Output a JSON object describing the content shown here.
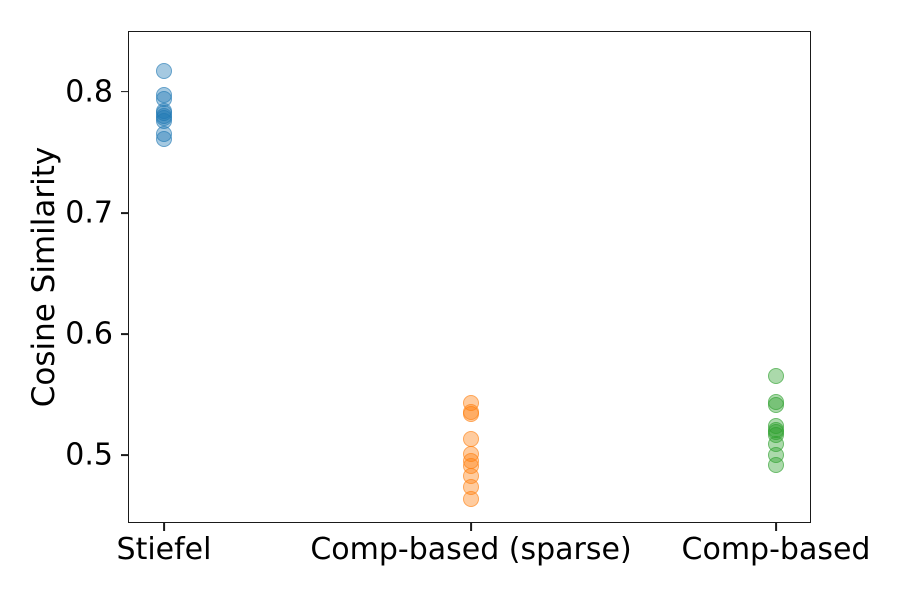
{
  "chart_data": {
    "type": "scatter",
    "title": "",
    "xlabel": "",
    "ylabel": "Cosine Similarity",
    "categories": [
      "Stiefel",
      "Comp-based (sparse)",
      "Comp-based"
    ],
    "ytick_labels": [
      "0.5",
      "0.6",
      "0.7",
      "0.8"
    ],
    "yticks": [
      0.5,
      0.6,
      0.7,
      0.8
    ],
    "ylim": [
      0.444,
      0.85
    ],
    "grid": false,
    "legend_position": "none",
    "marker": {
      "shape": "circle",
      "alpha": 0.4,
      "radius_px": 8
    },
    "colors": {
      "spine": "#1a1a1a",
      "text": "#000000",
      "background": "#ffffff"
    },
    "series": [
      {
        "name": "Stiefel",
        "color": "#1f77b4",
        "values": [
          0.817,
          0.797,
          0.794,
          0.784,
          0.782,
          0.78,
          0.778,
          0.776,
          0.765,
          0.761
        ]
      },
      {
        "name": "Comp-based (sparse)",
        "color": "#ff7f0e",
        "values": [
          0.543,
          0.536,
          0.534,
          0.513,
          0.501,
          0.495,
          0.491,
          0.483,
          0.474,
          0.464
        ]
      },
      {
        "name": "Comp-based",
        "color": "#2ca02c",
        "values": [
          0.565,
          0.544,
          0.541,
          0.524,
          0.521,
          0.519,
          0.517,
          0.509,
          0.5,
          0.492
        ]
      }
    ]
  }
}
